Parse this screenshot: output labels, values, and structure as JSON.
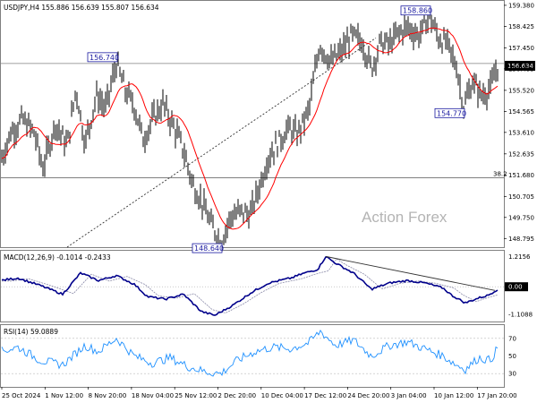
{
  "chart_data": {
    "type": "line",
    "symbol_line": "USDJPY,H4  155.886 156.639 155.807 156.634",
    "watermark": "Action Forex",
    "main": {
      "y_ticks": [
        "159.380",
        "158.425",
        "157.450",
        "156.495",
        "155.520",
        "154.565",
        "153.610",
        "152.635",
        "151.680",
        "150.705",
        "149.750",
        "148.795"
      ],
      "y_tick_values": [
        159.38,
        158.425,
        157.45,
        156.495,
        155.52,
        154.565,
        153.61,
        152.635,
        151.68,
        150.705,
        149.75,
        148.795
      ],
      "ylim": [
        148.4,
        159.58
      ],
      "current_price_label": "156.634",
      "current_price": 156.634,
      "horizontal_line_value": 156.74,
      "fib_label": "38.2",
      "fib_value": 151.55,
      "annotations": [
        {
          "label": "156.740",
          "value": 156.74,
          "bar": 130
        },
        {
          "label": "148.640",
          "value": 148.64,
          "bar": 247
        },
        {
          "label": "158.860",
          "value": 158.86,
          "bar": 480
        },
        {
          "label": "154.770",
          "value": 154.77,
          "bar": 518
        }
      ],
      "trendline": {
        "start": [
          75,
          148.4
        ],
        "end": [
          420,
          157.9
        ]
      },
      "colors": {
        "price": "#000000",
        "ma": "#ff0000",
        "line": "#777777"
      }
    },
    "macd": {
      "label": "MACD(12,26,9) -0.1014 -0.2433",
      "y_ticks": [
        "1.2156",
        "0.00",
        "-1.1088"
      ],
      "y_tick_values": [
        1.2156,
        0.0,
        -1.1088
      ],
      "ylim": [
        -1.4,
        1.45
      ],
      "trendline": {
        "start": [
          364,
          1.22
        ],
        "end": [
          553,
          -0.15
        ]
      },
      "colors": {
        "macd": "#00008b",
        "signal": "#8a8aa8",
        "trend": "#333333"
      }
    },
    "rsi": {
      "label": "RSI(14) 59.0889",
      "y_ticks": [
        "70",
        "50",
        "30"
      ],
      "y_tick_values": [
        70,
        50,
        30
      ],
      "ylim": [
        15,
        85
      ],
      "color": "#1e90ff"
    },
    "x_labels": [
      "25 Oct 2024",
      "1 Nov 12:00",
      "8 Nov 20:00",
      "18 Nov 04:00",
      "25 Nov 12:00",
      "2 Dec 20:00",
      "10 Dec 04:00",
      "17 Dec 12:00",
      "24 Dec 20:00",
      "3 Jan 04:00",
      "10 Jan 12:00",
      "17 Jan 20:00"
    ]
  }
}
